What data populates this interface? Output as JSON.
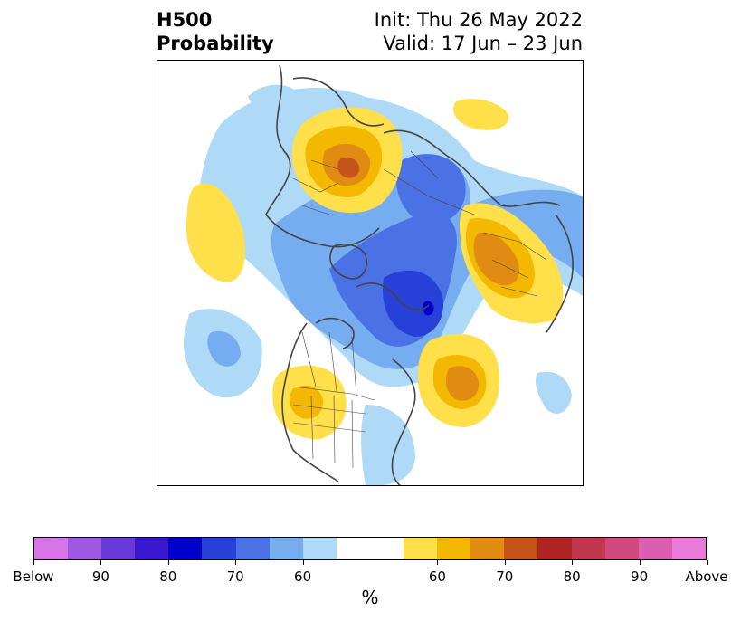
{
  "title": {
    "left_line1": "H500",
    "left_line2": "Probability",
    "right_line1": "Init: Thu 26 May 2022",
    "right_line2": "Valid: 17 Jun – 23 Jun"
  },
  "colorbar": {
    "unit": "%",
    "segments": [
      {
        "color": "#d674e8"
      },
      {
        "color": "#9e57e0"
      },
      {
        "color": "#6a38d8"
      },
      {
        "color": "#3a18d2"
      },
      {
        "color": "#0000cc"
      },
      {
        "color": "#2640d8"
      },
      {
        "color": "#4a72e4"
      },
      {
        "color": "#76acf0"
      },
      {
        "color": "#aedaf8"
      },
      {
        "color": "#ffffff"
      },
      {
        "color": "#ffe04a"
      },
      {
        "color": "#f4b800"
      },
      {
        "color": "#e08c12"
      },
      {
        "color": "#c4541a"
      },
      {
        "color": "#b02424"
      },
      {
        "color": "#c2364e"
      },
      {
        "color": "#d04a80"
      },
      {
        "color": "#dc5eb0"
      },
      {
        "color": "#e87ad8"
      }
    ],
    "ticks": [
      "Below",
      "90",
      "80",
      "70",
      "60",
      "60",
      "70",
      "80",
      "90",
      "Above"
    ]
  },
  "map": {
    "colors": {
      "blue60": "#aedaf8",
      "blue70": "#76acf0",
      "blue80": "#4a72e4",
      "blue85": "#2640d8",
      "blue90": "#0000cc",
      "yel60": "#ffe04a",
      "yel70": "#f4b800",
      "yel80": "#e08c12",
      "yel85": "#c4541a",
      "coast": "#444444",
      "border": "#444444"
    }
  }
}
